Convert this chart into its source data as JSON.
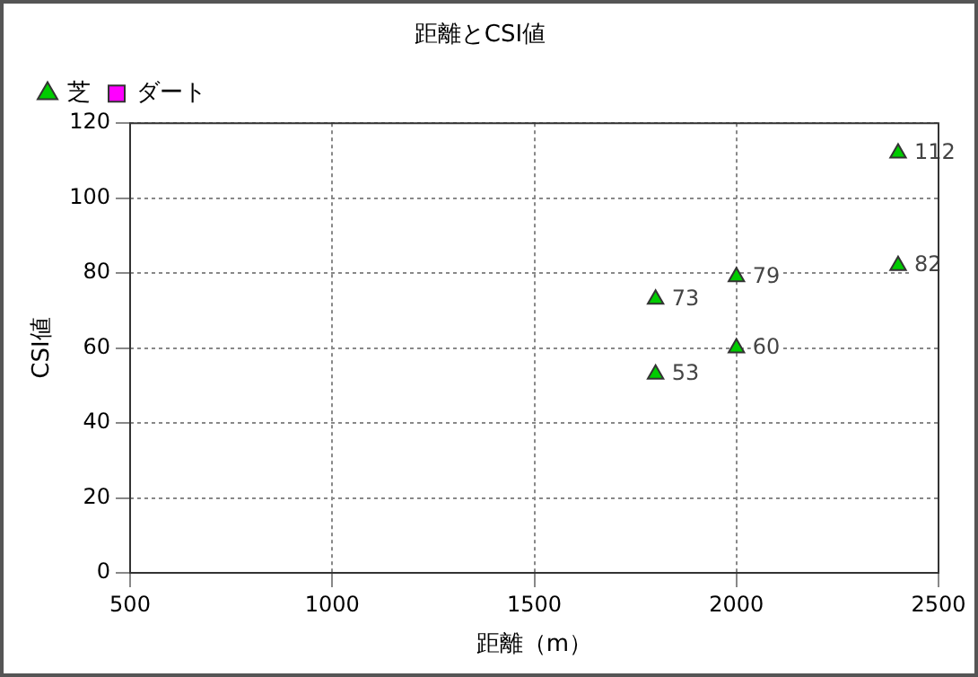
{
  "chart_data": {
    "type": "scatter",
    "title": "距離とCSI値",
    "xlabel": "距離（m）",
    "ylabel": "CSI値",
    "xlim": [
      500,
      2500
    ],
    "xticks": [
      500,
      {
        "value": 1000,
        "label": "1000"
      },
      {
        "value": 1500,
        "label": "1500"
      },
      {
        "value": 2000,
        "label": "2000"
      },
      {
        "value": 2500,
        "label": "2500"
      }
    ],
    "ylim": [
      0,
      120
    ],
    "yticks": [
      0,
      20,
      40,
      60,
      80,
      100,
      120
    ],
    "grid": true,
    "legend": "top left",
    "data_labels": true,
    "series": [
      {
        "name": "芝",
        "color": "#00cc00",
        "marker": "triangle",
        "x": [
          1800,
          1800,
          2000,
          2000,
          2400,
          2400
        ],
        "values": [
          53,
          73,
          60,
          79,
          82,
          112
        ]
      },
      {
        "name": "ダート",
        "color": "#ff00ff",
        "marker": "square"
      }
    ]
  }
}
